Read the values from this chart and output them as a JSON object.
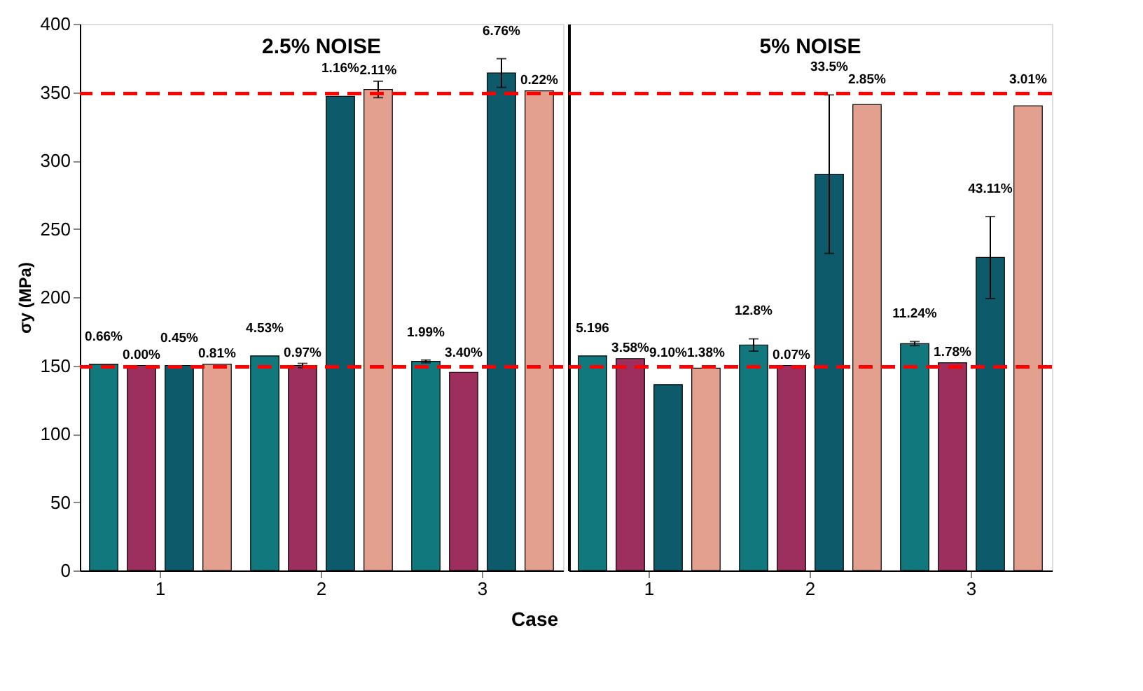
{
  "chart_data": [
    {
      "type": "bar",
      "title": "2.5% NOISE",
      "xlabel": "Case",
      "ylabel": "σy (MPa)",
      "categories": [
        "1",
        "2",
        "3"
      ],
      "ylim": [
        0,
        400
      ],
      "yticks": [
        0,
        50,
        100,
        150,
        200,
        250,
        300,
        350,
        400
      ],
      "series": [
        {
          "color": "#11787e",
          "values": [
            151,
            157,
            153
          ],
          "errors": [
            null,
            null,
            1
          ]
        },
        {
          "color": "#9c2f5e",
          "values": [
            150,
            150,
            145
          ],
          "errors": [
            null,
            1.5,
            null
          ]
        },
        {
          "color": "#0d5a6b",
          "values": [
            150,
            347,
            364
          ],
          "errors": [
            null,
            null,
            10.5
          ]
        },
        {
          "color": "#e3a08e",
          "values": [
            151,
            352,
            351
          ],
          "errors": [
            null,
            6,
            null
          ]
        }
      ],
      "annotations": [
        "0.66%",
        "0.00%",
        "0.45%",
        "0.81%",
        "4.53%",
        "0.97%",
        "1.16%",
        "2.11%",
        "1.99%",
        "3.40%",
        "6.76%",
        "0.22%"
      ],
      "ref_lines": [
        {
          "axis": "y",
          "value": 349,
          "color": "#ff0000",
          "line_style": "dashed"
        },
        {
          "axis": "y",
          "value": 149,
          "color": "#ff0000",
          "line_style": "dashed"
        }
      ]
    },
    {
      "type": "bar",
      "title": "5% NOISE",
      "categories": [
        "1",
        "2",
        "3"
      ],
      "ylim": [
        0,
        400
      ],
      "yticks": [
        0,
        50,
        100,
        150,
        200,
        250,
        300,
        350,
        400
      ],
      "tick_labels": "x",
      "series": [
        {
          "color": "#11787e",
          "values": [
            157,
            165,
            166
          ],
          "errors": [
            null,
            4.5,
            1.5
          ]
        },
        {
          "color": "#9c2f5e",
          "values": [
            155,
            150,
            152
          ],
          "errors": [
            null,
            null,
            null
          ]
        },
        {
          "color": "#0d5a6b",
          "values": [
            136,
            290,
            229
          ],
          "errors": [
            null,
            58,
            30
          ]
        },
        {
          "color": "#e3a08e",
          "values": [
            148,
            341,
            340
          ],
          "errors": [
            null,
            null,
            null
          ]
        }
      ],
      "annotations": [
        "5.196",
        "3.58%",
        "9.10%",
        "1.38%",
        "12.8%",
        "0.07%",
        "33.5%",
        "2.85%",
        "11.24%",
        "1.78%",
        "43.11%",
        "3.01%"
      ],
      "ref_lines": [
        {
          "axis": "y",
          "value": 349,
          "color": "#ff0000",
          "line_style": "dashed"
        },
        {
          "axis": "y",
          "value": 149,
          "color": "#ff0000",
          "line_style": "dashed"
        }
      ]
    }
  ]
}
